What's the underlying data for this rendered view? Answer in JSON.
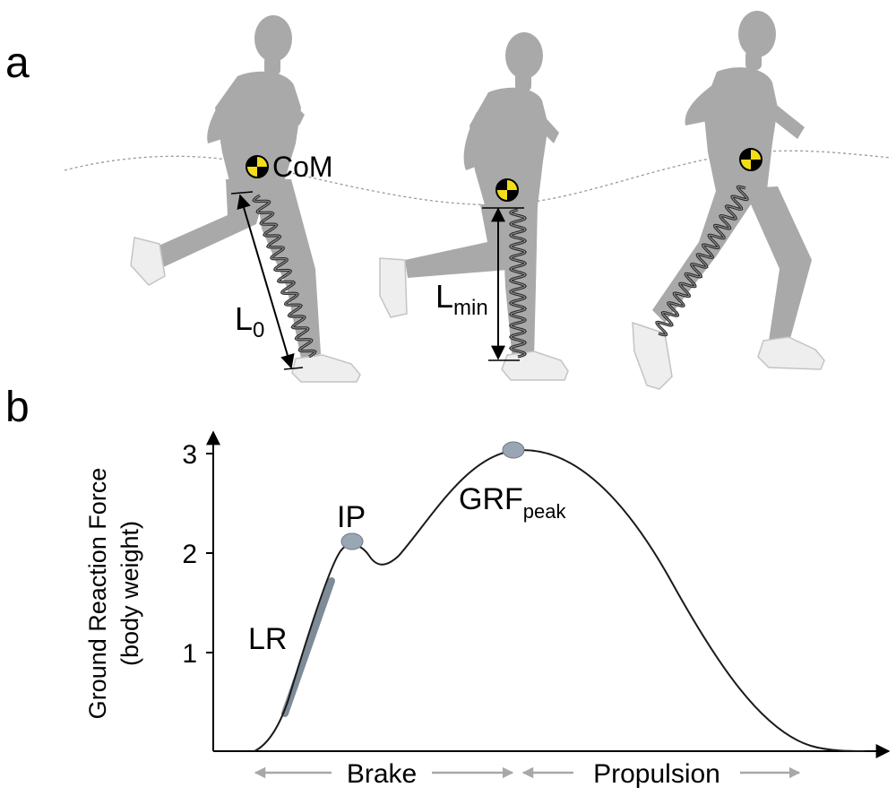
{
  "panel_labels": {
    "a": "a",
    "b": "b"
  },
  "panel_a": {
    "com_label": "CoM",
    "l0_main": "L",
    "l0_sub": "0",
    "lmin_main": "L",
    "lmin_sub": "min"
  },
  "panel_b": {
    "y_axis_label_line1": "Ground Reaction Force",
    "y_axis_label_line2": "(body weight)",
    "y_ticks": [
      "1",
      "2",
      "3"
    ],
    "annotations": {
      "lr": "LR",
      "ip": "IP",
      "grf_main": "GRF",
      "grf_sub": "peak"
    },
    "phases": {
      "brake": "Brake",
      "propulsion": "Propulsion"
    }
  },
  "colors": {
    "runner": "#a9a9a9",
    "com_yellow": "#f3dd1a",
    "curve": "#1a1a1a",
    "marker": "#9aa6b4",
    "lr_line": "#7f8c98",
    "phase_arrow": "#a8a8a8"
  }
}
